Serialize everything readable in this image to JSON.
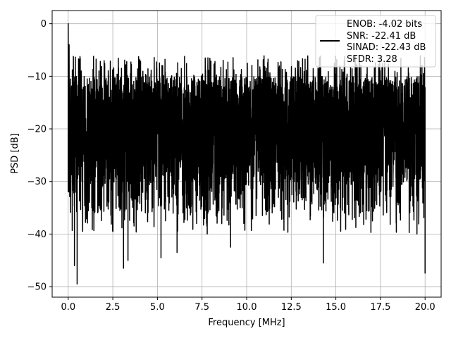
{
  "chart_data": {
    "type": "line",
    "title": "",
    "xlabel": "Frequency [MHz]",
    "ylabel": "PSD [dB]",
    "xlim": [
      -0.9,
      20.9
    ],
    "ylim": [
      -52,
      2.5
    ],
    "x_ticks": [
      0.0,
      2.5,
      5.0,
      7.5,
      10.0,
      12.5,
      15.0,
      17.5,
      20.0
    ],
    "x_tick_labels": [
      "0.0",
      "2.5",
      "5.0",
      "7.5",
      "10.0",
      "12.5",
      "15.0",
      "17.5",
      "20.0"
    ],
    "y_ticks": [
      0,
      -10,
      -20,
      -30,
      -40,
      -50
    ],
    "y_tick_labels": [
      "0",
      "−10",
      "−20",
      "−30",
      "−40",
      "−50"
    ],
    "grid": true,
    "legend_position": "top-right",
    "legend": [
      "ENOB: -4.02 bits",
      "SNR: -22.41 dB",
      "SINAD: -22.43 dB",
      "SFDR: 3.28"
    ],
    "series": [
      {
        "color": "#000000",
        "points_described": "dense noise floor between about -35 and -8 dB across 0 to 20 MHz",
        "x_range": [
          0.0,
          20.0
        ],
        "peaks": [
          [
            0.0,
            0.0
          ],
          [
            0.05,
            -4.0
          ]
        ],
        "deep_dips": [
          [
            0.35,
            -46
          ],
          [
            0.5,
            -49.5
          ],
          [
            3.1,
            -46.5
          ],
          [
            3.35,
            -45
          ],
          [
            5.2,
            -44.5
          ],
          [
            6.1,
            -43.5
          ],
          [
            9.1,
            -42.5
          ],
          [
            14.3,
            -45.5
          ],
          [
            20.0,
            -47.5
          ]
        ]
      }
    ]
  }
}
